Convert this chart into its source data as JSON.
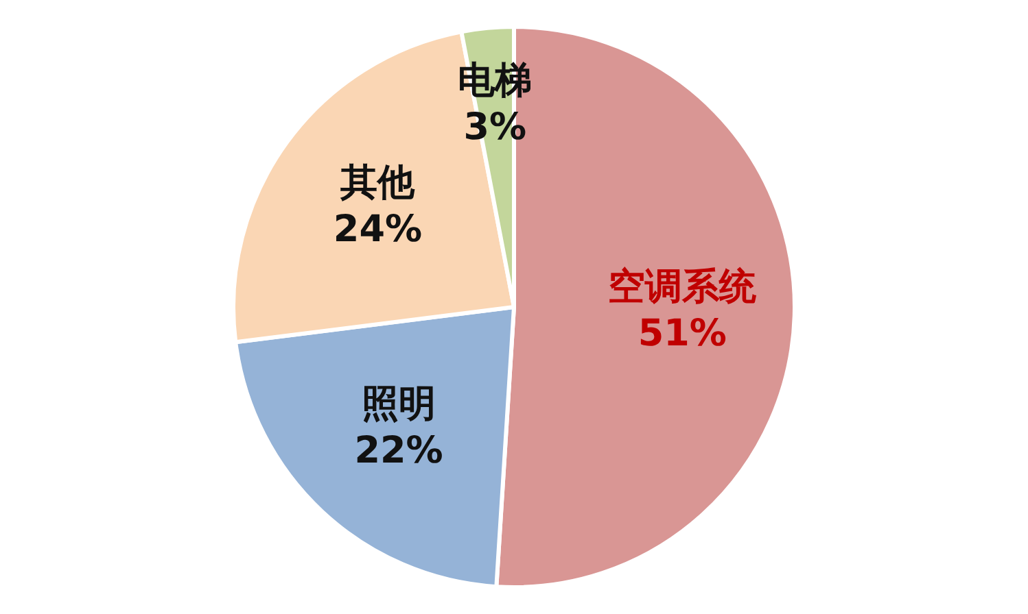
{
  "chart_data": {
    "type": "pie",
    "categories": [
      "空调系统",
      "照明",
      "其他",
      "电梯"
    ],
    "values": [
      51,
      22,
      24,
      3
    ],
    "value_labels": [
      "51%",
      "22%",
      "24%",
      "3%"
    ],
    "colors": [
      "#d99694",
      "#95b3d7",
      "#fad6b4",
      "#c3d69b"
    ],
    "legend": false
  }
}
